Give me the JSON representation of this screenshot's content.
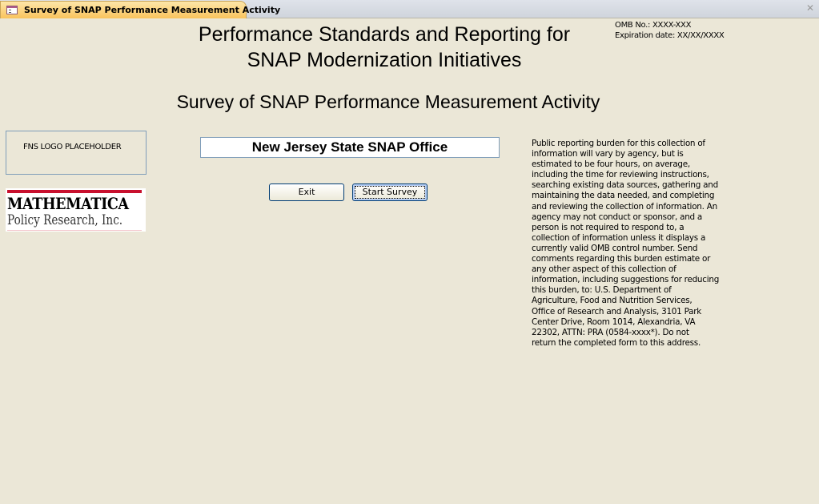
{
  "tab": {
    "title": "Survey of SNAP Performance Measurement Activity",
    "icon": "form-icon"
  },
  "header": {
    "title_line1": "Performance Standards and Reporting for",
    "title_line2": "SNAP Modernization Initiatives",
    "subtitle": "Survey of SNAP Performance Measurement Activity"
  },
  "omb": {
    "number": "OMB No.:  XXXX-XXX",
    "expiration": "Expiration date:  XX/XX/XXXX"
  },
  "logos": {
    "fns": "FNS LOGO PLACEHOLDER",
    "mathematica_line1": "MATHEMATICA",
    "mathematica_line2": "Policy Research, Inc."
  },
  "office_name": "New Jersey State SNAP Office",
  "buttons": {
    "exit": "Exit",
    "start": "Start Survey"
  },
  "burden_lines": [
    "Public reporting burden for this collection of",
    "information will vary by agency, but is",
    "estimated to be four hours, on average,",
    "including the time for reviewing instructions,",
    "searching existing data sources, gathering and",
    "maintaining the data needed, and completing",
    "and reviewing the collection of information.  An",
    "agency may not conduct or sponsor, and a",
    "person is not required to respond to, a",
    "collection of information unless it displays a",
    "currently valid OMB control number.  Send",
    "comments regarding this burden estimate or",
    "any other aspect of this collection of",
    "information, including suggestions for reducing",
    "this burden, to: U.S. Department of",
    "Agriculture, Food and Nutrition Services,",
    "Office of Research and Analysis, 3101 Park",
    "Center Drive, Room 1014, Alexandria, VA",
    "22302, ATTN: PRA (0584-xxxx*).  Do not",
    "return the completed form to this address."
  ]
}
